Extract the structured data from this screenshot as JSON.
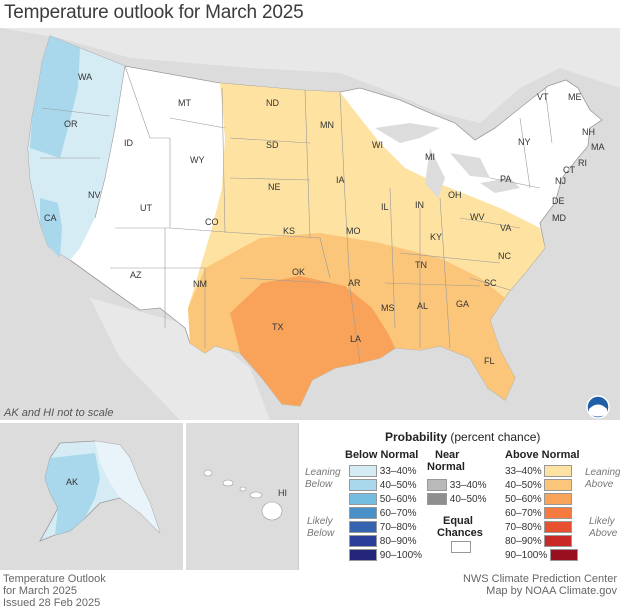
{
  "title": "Temperature outlook for March 2025",
  "scale_note": "AK and HI not to scale",
  "colors": {
    "below": [
      "#d5ecf5",
      "#a9d8ec",
      "#74bde1",
      "#4a90c9",
      "#3663b0",
      "#2a3f9a",
      "#24267a"
    ],
    "near": [
      "#b9b9b9",
      "#8e8e8e"
    ],
    "above": [
      "#fde2a1",
      "#fbc679",
      "#f9a35a",
      "#f47a3f",
      "#e8512f",
      "#c92a25",
      "#9a0f1f"
    ],
    "land": "#ffffff",
    "ocean": "#dcdcdc"
  },
  "states": [
    "WA",
    "OR",
    "CA",
    "ID",
    "NV",
    "MT",
    "WY",
    "UT",
    "AZ",
    "CO",
    "NM",
    "ND",
    "SD",
    "NE",
    "KS",
    "OK",
    "TX",
    "MN",
    "IA",
    "MO",
    "AR",
    "LA",
    "WI",
    "IL",
    "MI",
    "IN",
    "OH",
    "KY",
    "TN",
    "MS",
    "AL",
    "GA",
    "FL",
    "SC",
    "NC",
    "VA",
    "WV",
    "PA",
    "NY",
    "VT",
    "ME",
    "NH",
    "MA",
    "CT",
    "RI",
    "NJ",
    "DE",
    "MD",
    "AK",
    "HI"
  ],
  "legend": {
    "title_bold": "Probability",
    "title_rest": " (percent chance)",
    "below_header": "Below Normal",
    "near_header_1": "Near",
    "near_header_2": "Normal",
    "above_header": "Above Normal",
    "below_ranges": [
      "33–40%",
      "40–50%",
      "50–60%",
      "60–70%",
      "70–80%",
      "80–90%",
      "90–100%"
    ],
    "near_ranges": [
      "33–40%",
      "40–50%"
    ],
    "above_ranges": [
      "33–40%",
      "40–50%",
      "50–60%",
      "60–70%",
      "70–80%",
      "80–90%",
      "90–100%"
    ],
    "leaning_below_1": "Leaning",
    "leaning_below_2": "Below",
    "likely_below_1": "Likely",
    "likely_below_2": "Below",
    "leaning_above_1": "Leaning",
    "leaning_above_2": "Above",
    "likely_above_1": "Likely",
    "likely_above_2": "Above",
    "equal_1": "Equal",
    "equal_2": "Chances"
  },
  "footer": {
    "left_1": "Temperature Outlook",
    "left_2": "for March 2025",
    "left_3": "Issued 28 Feb 2025",
    "right_1": "NWS Climate Prediction Center",
    "right_2": "Map by NOAA Climate.gov"
  },
  "noaa_logo_text": "NOAA"
}
